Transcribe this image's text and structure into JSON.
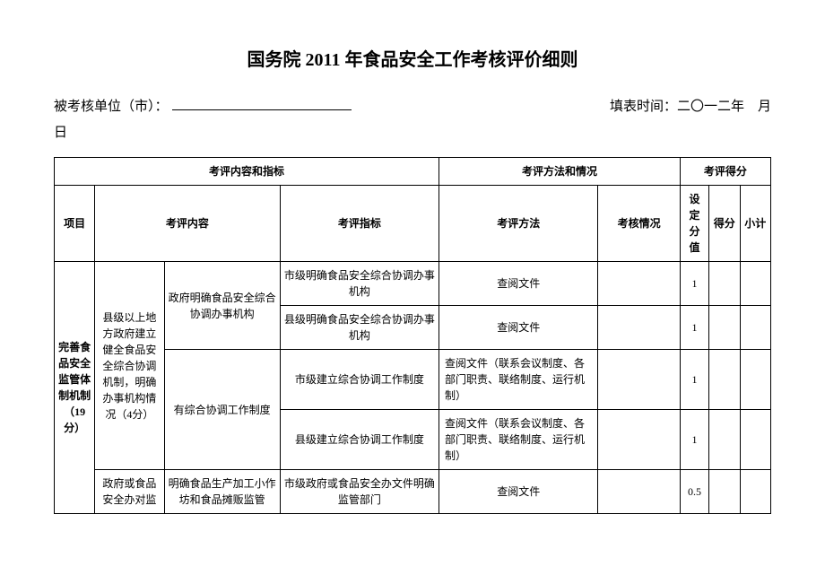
{
  "title": "国务院 2011 年食品安全工作考核评价细则",
  "meta": {
    "unit_label": "被考核单位（市）：",
    "fill_time_label": "填表时间：二〇一二年　月",
    "day_label": "日"
  },
  "headers": {
    "eval_content_indicator": "考评内容和指标",
    "eval_method_status": "考评方法和情况",
    "eval_score": "考评得分",
    "project": "项目",
    "eval_content": "考评内容",
    "eval_indicator": "考评指标",
    "eval_method": "考评方法",
    "assess_status": "考核情况",
    "set_value": "设定分值",
    "score": "得分",
    "subtotal": "小计"
  },
  "section": {
    "project_name": "完善食品安全监管体制机制（19分）",
    "group1": {
      "content1": "县级以上地方政府建立健全食品安全综合协调机制，明确办事机构情况（4分）",
      "sub1": {
        "content2": "政府明确食品安全综合协调办事机构",
        "rows": [
          {
            "indicator": "市级明确食品安全综合协调办事机构",
            "method": "查阅文件",
            "status": "",
            "setval": "1"
          },
          {
            "indicator": "县级明确食品安全综合协调办事机构",
            "method": "查阅文件",
            "status": "",
            "setval": "1"
          }
        ]
      },
      "sub2": {
        "content2": "有综合协调工作制度",
        "rows": [
          {
            "indicator": "市级建立综合协调工作制度",
            "method": "查阅文件（联系会议制度、各部门职责、联络制度、运行机制）",
            "status": "",
            "setval": "1"
          },
          {
            "indicator": "县级建立综合协调工作制度",
            "method": "查阅文件（联系会议制度、各部门职责、联络制度、运行机制）",
            "status": "",
            "setval": "1"
          }
        ]
      }
    },
    "group2": {
      "content1": "政府或食品安全办对监",
      "content2": "明确食品生产加工小作坊和食品摊贩监管",
      "rows": [
        {
          "indicator": "市级政府或食品安全办文件明确监管部门",
          "method": "查阅文件",
          "status": "",
          "setval": "0.5"
        }
      ]
    }
  }
}
